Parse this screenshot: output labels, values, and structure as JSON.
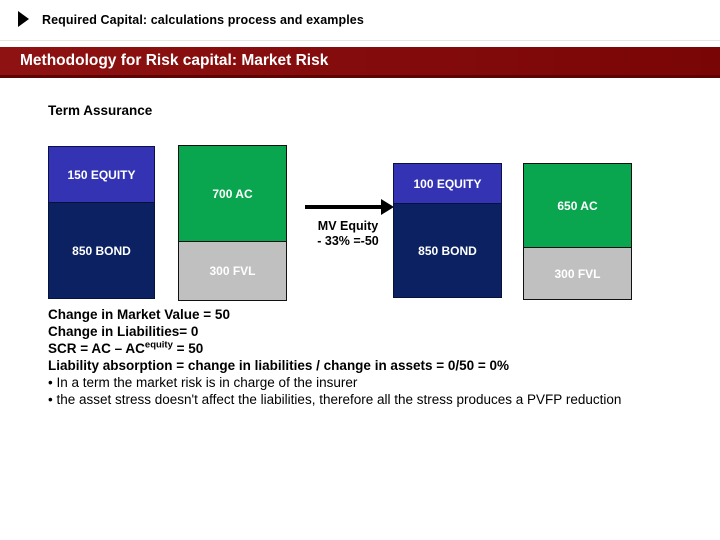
{
  "header": {
    "arrow_icon": "right-triangle",
    "title": "Required Capital: calculations process and examples"
  },
  "banner": {
    "title": "Methodology for Risk capital: Market Risk",
    "bg_color": "#8B0F0F",
    "shadow_color": "#5E0202",
    "text_color": "#FFFFFF"
  },
  "diagram": {
    "subtitle": "Term Assurance",
    "colors": {
      "equity": "#3333B4",
      "bond": "#0B2161",
      "ac": "#0AA64F",
      "fvl": "#C0C0C0"
    },
    "pre_stress": {
      "equity_label": "150 EQUITY",
      "bond_label": "850 BOND",
      "ac_label": "700 AC",
      "fvl_label": "300 FVL"
    },
    "shock": {
      "line1": "MV Equity",
      "line2": "- 33% =-50"
    },
    "post_stress": {
      "equity_label": "100 EQUITY",
      "bond_label": "850 BOND",
      "ac_label": "650 AC",
      "fvl_label": "300 FVL"
    }
  },
  "notes": {
    "line1": "Change in Market Value = 50",
    "line2": "Change in Liabilities= 0",
    "scr_prefix": "SCR = AC – AC",
    "scr_sup": "equity",
    "scr_suffix": " = 50",
    "line4": "Liability absorption = change in liabilities / change in assets = 0/50 = 0%",
    "bullet1": "• In a term the market risk is in charge of the insurer",
    "bullet2": "• the asset stress doesn't affect the liabilities, therefore all the stress produces a PVFP reduction"
  }
}
